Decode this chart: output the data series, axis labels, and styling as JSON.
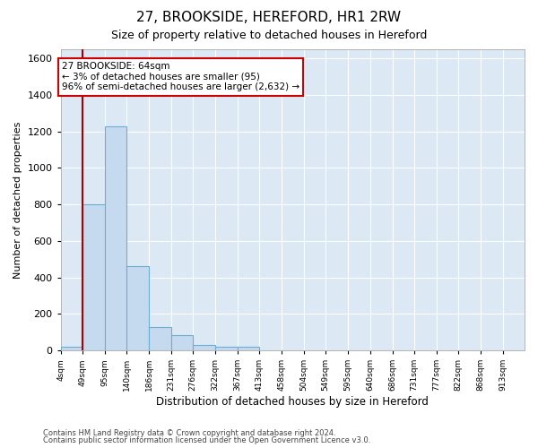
{
  "title_line1": "27, BROOKSIDE, HEREFORD, HR1 2RW",
  "title_line2": "Size of property relative to detached houses in Hereford",
  "xlabel": "Distribution of detached houses by size in Hereford",
  "ylabel": "Number of detached properties",
  "annotation_line1": "27 BROOKSIDE: 64sqm",
  "annotation_line2": "← 3% of detached houses are smaller (95)",
  "annotation_line3": "96% of semi-detached houses are larger (2,632) →",
  "marker_value": 64,
  "bar_color": "#c5d9ef",
  "bar_edge_color": "#6baed6",
  "marker_color": "#aa0000",
  "background_color": "#dce9f5",
  "annotation_box_color": "#ffffff",
  "annotation_border_color": "#cc0000",
  "grid_color": "#ffffff",
  "categories": [
    "4sqm",
    "49sqm",
    "95sqm",
    "140sqm",
    "186sqm",
    "231sqm",
    "276sqm",
    "322sqm",
    "367sqm",
    "413sqm",
    "458sqm",
    "504sqm",
    "549sqm",
    "595sqm",
    "640sqm",
    "686sqm",
    "731sqm",
    "777sqm",
    "822sqm",
    "868sqm",
    "913sqm"
  ],
  "bin_starts": [
    4,
    49,
    95,
    140,
    186,
    231,
    276,
    322,
    367,
    413,
    458,
    504,
    549,
    595,
    640,
    686,
    731,
    777,
    822,
    868,
    913
  ],
  "bin_width": 45,
  "values": [
    18,
    800,
    1230,
    460,
    130,
    85,
    30,
    20,
    18,
    0,
    0,
    0,
    0,
    0,
    0,
    0,
    0,
    0,
    0,
    0,
    0
  ],
  "ylim": [
    0,
    1650
  ],
  "yticks": [
    0,
    200,
    400,
    600,
    800,
    1000,
    1200,
    1400,
    1600
  ],
  "footer_line1": "Contains HM Land Registry data © Crown copyright and database right 2024.",
  "footer_line2": "Contains public sector information licensed under the Open Government Licence v3.0."
}
